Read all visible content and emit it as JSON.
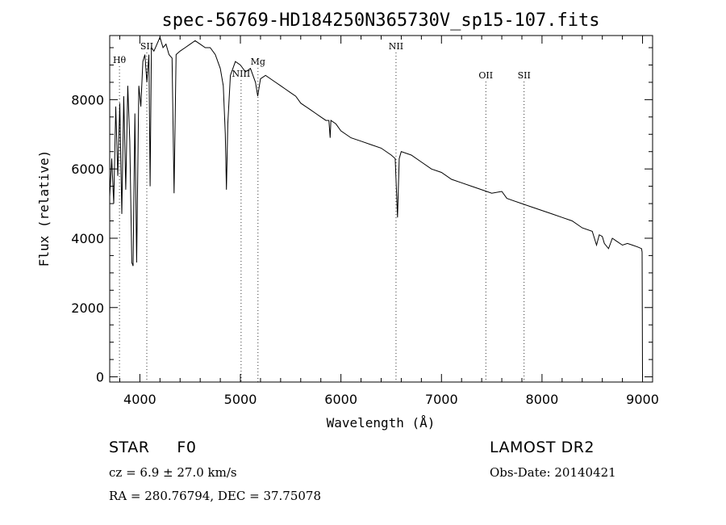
{
  "chart_data": {
    "type": "line",
    "title": "spec-56769-HD184250N365730V_sp15-107.fits",
    "xlabel": "Wavelength (Å)",
    "ylabel": "Flux (relative)",
    "xlim": [
      3700,
      9100
    ],
    "ylim": [
      -150,
      9850
    ],
    "xticks": [
      4000,
      5000,
      6000,
      7000,
      8000,
      9000
    ],
    "yticks": [
      0,
      2000,
      4000,
      6000,
      8000
    ],
    "series": [
      {
        "x": [
          3700,
          3720,
          3740,
          3760,
          3780,
          3800,
          3820,
          3840,
          3860,
          3880,
          3900,
          3920,
          3933,
          3950,
          3968,
          3990,
          4010,
          4030,
          4050,
          4070,
          4090,
          4102,
          4115,
          4140,
          4170,
          4200,
          4230,
          4260,
          4290,
          4320,
          4340,
          4360,
          4400,
          4450,
          4500,
          4550,
          4600,
          4650,
          4700,
          4750,
          4800,
          4830,
          4850,
          4861,
          4875,
          4900,
          4950,
          5000,
          5050,
          5100,
          5150,
          5172,
          5200,
          5250,
          5300,
          5350,
          5400,
          5450,
          5500,
          5550,
          5600,
          5650,
          5700,
          5750,
          5800,
          5850,
          5880,
          5893,
          5900,
          5950,
          6000,
          6100,
          6200,
          6300,
          6400,
          6500,
          6540,
          6563,
          6580,
          6600,
          6700,
          6800,
          6900,
          7000,
          7100,
          7200,
          7300,
          7400,
          7500,
          7600,
          7650,
          7700,
          7800,
          7900,
          8000,
          8100,
          8200,
          8300,
          8400,
          8500,
          8542,
          8570,
          8600,
          8620,
          8662,
          8700,
          8750,
          8800,
          8850,
          8900,
          8950,
          8990,
          8996,
          9000
        ],
        "y": [
          5200,
          6300,
          5000,
          7800,
          5800,
          7900,
          4700,
          8100,
          5400,
          8400,
          6800,
          3300,
          3200,
          7600,
          3300,
          8400,
          7800,
          9100,
          9300,
          8500,
          9300,
          5500,
          9500,
          9400,
          9600,
          9800,
          9500,
          9600,
          9300,
          9200,
          5300,
          9300,
          9400,
          9500,
          9600,
          9700,
          9600,
          9500,
          9500,
          9300,
          8900,
          8400,
          7000,
          5400,
          7300,
          8700,
          9100,
          9000,
          8800,
          8900,
          8500,
          8100,
          8600,
          8700,
          8600,
          8500,
          8400,
          8300,
          8200,
          8100,
          7900,
          7800,
          7700,
          7600,
          7500,
          7400,
          7400,
          6900,
          7400,
          7300,
          7100,
          6900,
          6800,
          6700,
          6600,
          6400,
          6300,
          4600,
          6300,
          6500,
          6400,
          6200,
          6000,
          5900,
          5700,
          5600,
          5500,
          5400,
          5300,
          5350,
          5150,
          5100,
          5000,
          4900,
          4800,
          4700,
          4600,
          4500,
          4300,
          4200,
          3800,
          4100,
          4050,
          3850,
          3700,
          4000,
          3900,
          3800,
          3850,
          3800,
          3750,
          3700,
          3600,
          0
        ]
      }
    ],
    "lines": [
      {
        "label": "Hθ",
        "x": 3797
      },
      {
        "label": "SII",
        "x": 4069
      },
      {
        "label": "NIII",
        "x": 5007
      },
      {
        "label": "Mg",
        "x": 5175
      },
      {
        "label": "NII",
        "x": 6548
      },
      {
        "label": "OII",
        "x": 7441
      },
      {
        "label": "SII",
        "x": 7822
      }
    ],
    "grid": false,
    "legend": "none"
  },
  "footer": {
    "object": "STAR",
    "subclass": "F0",
    "survey": "LAMOST DR2",
    "cz": "cz = 6.9 ± 27.0 km/s",
    "obs_date": "Obs-Date: 20140421",
    "coords": "RA = 280.76794, DEC =  37.75078"
  }
}
